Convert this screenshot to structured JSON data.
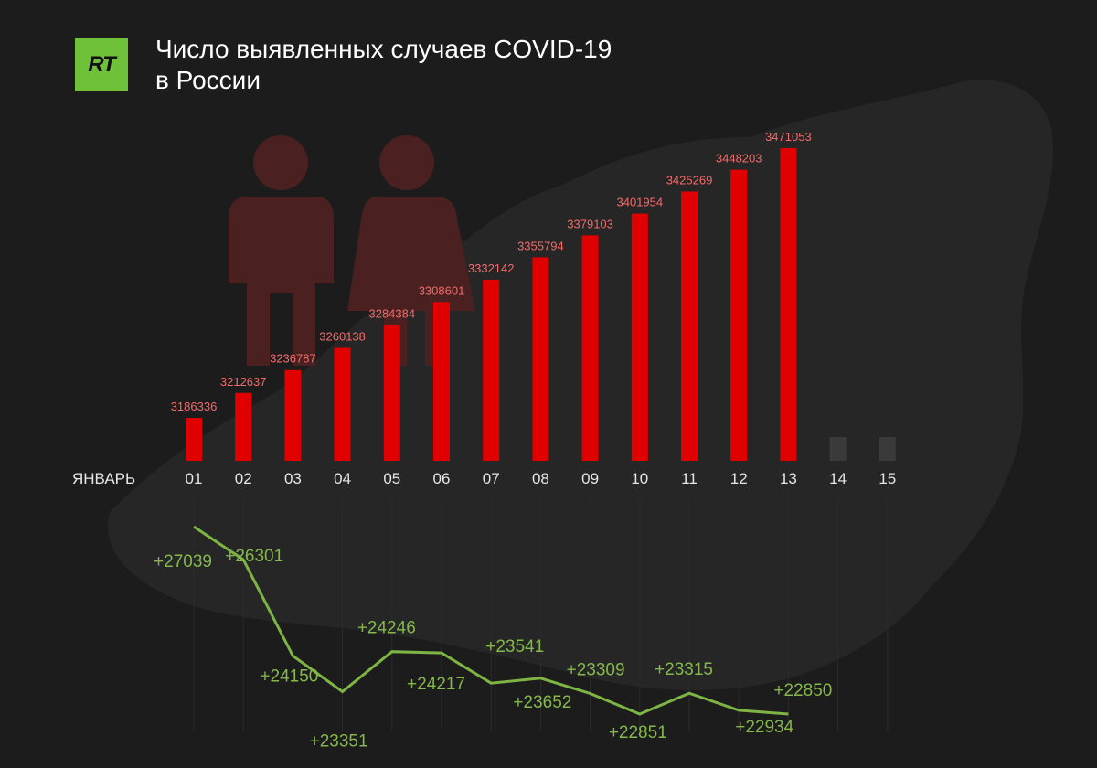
{
  "header": {
    "logo_text": "RT",
    "title_line1": "Число выявленных случаев COVID-19",
    "title_line2": "в России"
  },
  "colors": {
    "background": "#1c1c1c",
    "bar": "#e00000",
    "bar_future": "#3a3a3a",
    "bar_label": "#f26b6b",
    "line": "#7db443",
    "line_label": "#84b84a",
    "logo": "#6fc13a"
  },
  "chart_data": [
    {
      "type": "bar",
      "xlabel": "ЯНВАРЬ",
      "categories": [
        "01",
        "02",
        "03",
        "04",
        "05",
        "06",
        "07",
        "08",
        "09",
        "10",
        "11",
        "12",
        "13",
        "14",
        "15"
      ],
      "values": [
        3186336,
        3212637,
        3236787,
        3260138,
        3284384,
        3308601,
        3332142,
        3355794,
        3379103,
        3401954,
        3425269,
        3448203,
        3471053,
        null,
        null
      ],
      "grid": false,
      "legend": "none"
    },
    {
      "type": "line",
      "categories": [
        "01",
        "02",
        "03",
        "04",
        "05",
        "06",
        "07",
        "08",
        "09",
        "10",
        "11",
        "12",
        "13"
      ],
      "values": [
        27039,
        26301,
        24150,
        23351,
        24246,
        24217,
        23541,
        23652,
        23309,
        22851,
        23315,
        22934,
        22850
      ],
      "labels": [
        "+27039",
        "+26301",
        "+24150",
        "+23351",
        "+24246",
        "+24217",
        "+23541",
        "+23652",
        "+23309",
        "+22851",
        "+23315",
        "+22934",
        "+22850"
      ],
      "grid": false,
      "legend": "none"
    }
  ]
}
